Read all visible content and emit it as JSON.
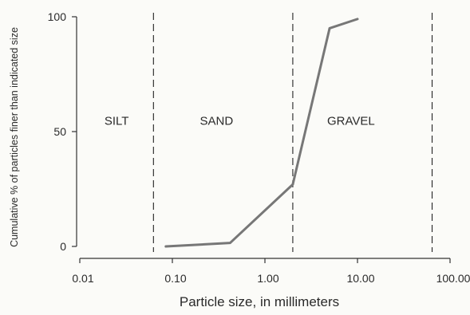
{
  "chart_data": {
    "type": "line",
    "title": "",
    "xlabel": "Particle size, in millimeters",
    "ylabel": "Cumulative % of particles finer than indicated size",
    "x_scale": "log",
    "xlim": [
      0.01,
      100
    ],
    "ylim": [
      0,
      100
    ],
    "x_ticks": [
      0.01,
      0.1,
      1,
      10,
      100
    ],
    "x_tick_labels": [
      "0.01",
      "0.10",
      "1.00",
      "10.00",
      "100.00"
    ],
    "y_ticks": [
      0,
      50,
      100
    ],
    "y_tick_labels": [
      "0",
      "50",
      "100"
    ],
    "grid": false,
    "legend": "none",
    "series": [
      {
        "x": [
          0.085,
          0.42,
          2.0,
          5.0,
          10.0
        ],
        "y": [
          0,
          1.5,
          27,
          95,
          99
        ],
        "color": "#777777"
      }
    ],
    "boundaries": [
      {
        "x": 0.0625
      },
      {
        "x": 2.0
      },
      {
        "x": 64.0
      }
    ],
    "regions": [
      {
        "label": "SILT",
        "x": 0.025,
        "y": 53
      },
      {
        "label": "SAND",
        "x": 0.3,
        "y": 53
      },
      {
        "label": "GRAVEL",
        "x": 8.5,
        "y": 53
      }
    ]
  }
}
